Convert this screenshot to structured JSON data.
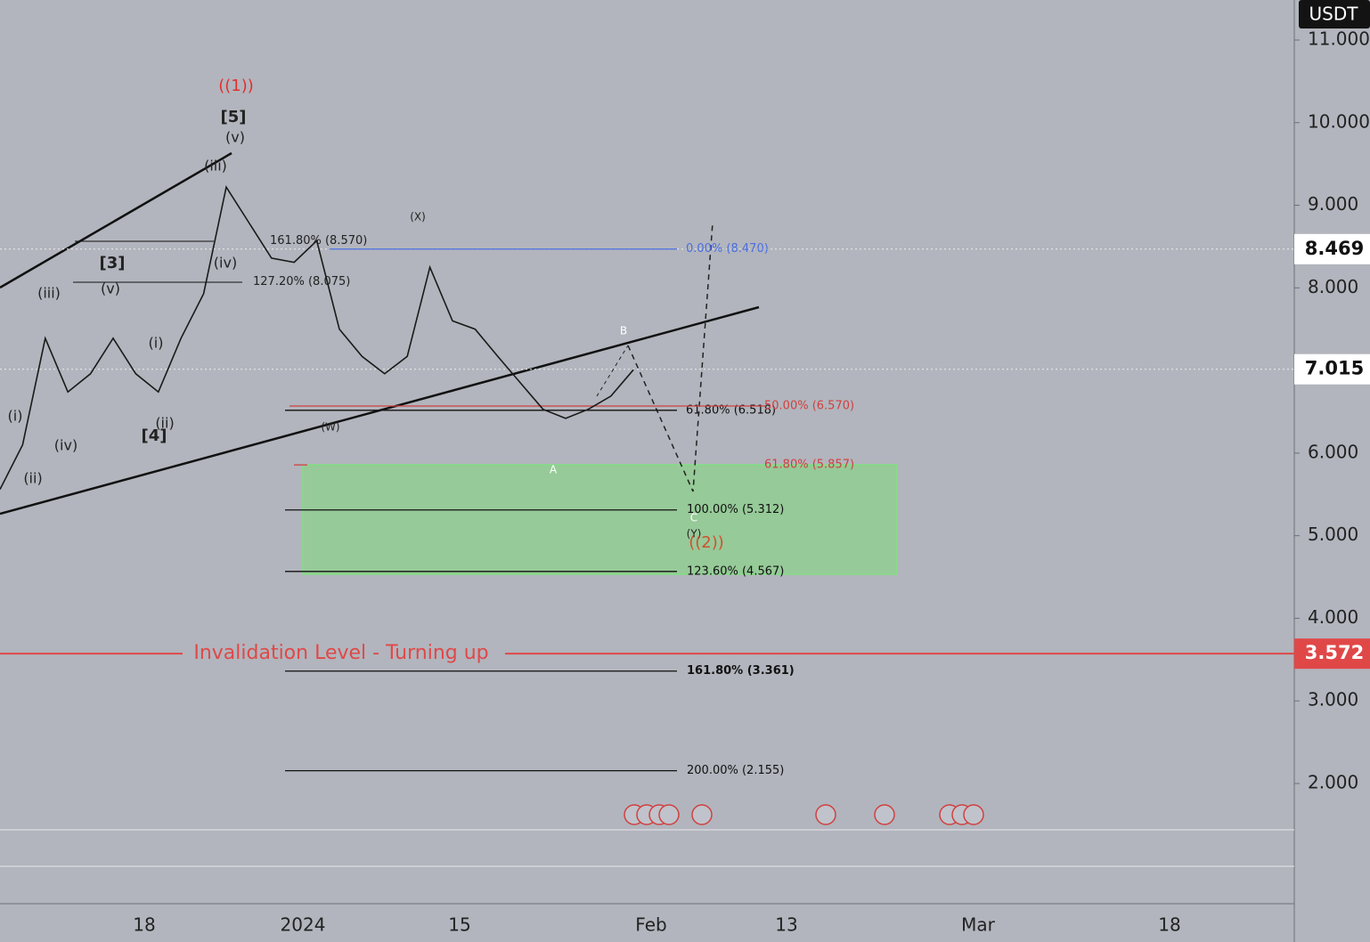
{
  "header": {
    "currency": "USDT"
  },
  "price_axis": {
    "ticks": [
      {
        "value": 2,
        "label": "2.000"
      },
      {
        "value": 3,
        "label": "3.000"
      },
      {
        "value": 4,
        "label": "4.000"
      },
      {
        "value": 5,
        "label": "5.000"
      },
      {
        "value": 6,
        "label": "6.000"
      },
      {
        "value": 7,
        "label": "7.000"
      },
      {
        "value": 8,
        "label": "8.000"
      },
      {
        "value": 9,
        "label": "9.000"
      },
      {
        "value": 10,
        "label": "10.000"
      },
      {
        "value": 11,
        "label": "11.000"
      }
    ],
    "tags": [
      {
        "value": 8.469,
        "label": "8.469"
      },
      {
        "value": 7.015,
        "label": "7.015"
      },
      {
        "value": 3.572,
        "label": "3.572"
      }
    ]
  },
  "time_axis": {
    "labels": [
      "18",
      "2024",
      "15",
      "Feb",
      "13",
      "Mar",
      "18"
    ]
  },
  "price_path": {
    "values": [
      5.56,
      6.1,
      7.39,
      6.74,
      6.96,
      7.39,
      6.96,
      6.74,
      7.39,
      7.93,
      9.22,
      8.79,
      8.36,
      8.31,
      8.57,
      7.5,
      7.17,
      6.96,
      7.17,
      8.25,
      7.6,
      7.5,
      7.17,
      6.85,
      6.53,
      6.42,
      6.53,
      6.69,
      7.01
    ]
  },
  "invalidation": {
    "text": "Invalidation Level - Turning up",
    "value": 3.572
  },
  "fib_levels": [
    {
      "label": "0.00% (8.470)",
      "price": 8.47
    },
    {
      "label": "61.80% (6.518)",
      "price": 6.518
    },
    {
      "label": "50.00% (6.570)",
      "price": 6.57
    },
    {
      "label": "61.80% (5.857)",
      "price": 5.857
    },
    {
      "label": "100.00% (5.312)",
      "price": 5.312
    },
    {
      "label": "123.60% (4.567)",
      "price": 4.567
    },
    {
      "label": "161.80% (3.361)",
      "price": 3.361
    },
    {
      "label": "200.00% (2.155)",
      "price": 2.155
    },
    {
      "label": "161.80% (8.570)",
      "price": 8.57
    },
    {
      "label": "127.20% (8.075)",
      "price": 8.075
    }
  ],
  "wave_labels": [
    "((1))",
    "[5]",
    "(v)",
    "(iii)",
    "(iv)",
    "[3]",
    "(v)",
    "(iii)",
    "(i)",
    "(i)",
    "(iv)",
    "(ii)",
    "[4]",
    "(ii)",
    "(X)",
    "(W)",
    "B",
    "A",
    "C",
    "(Y)",
    "((2))"
  ]
}
